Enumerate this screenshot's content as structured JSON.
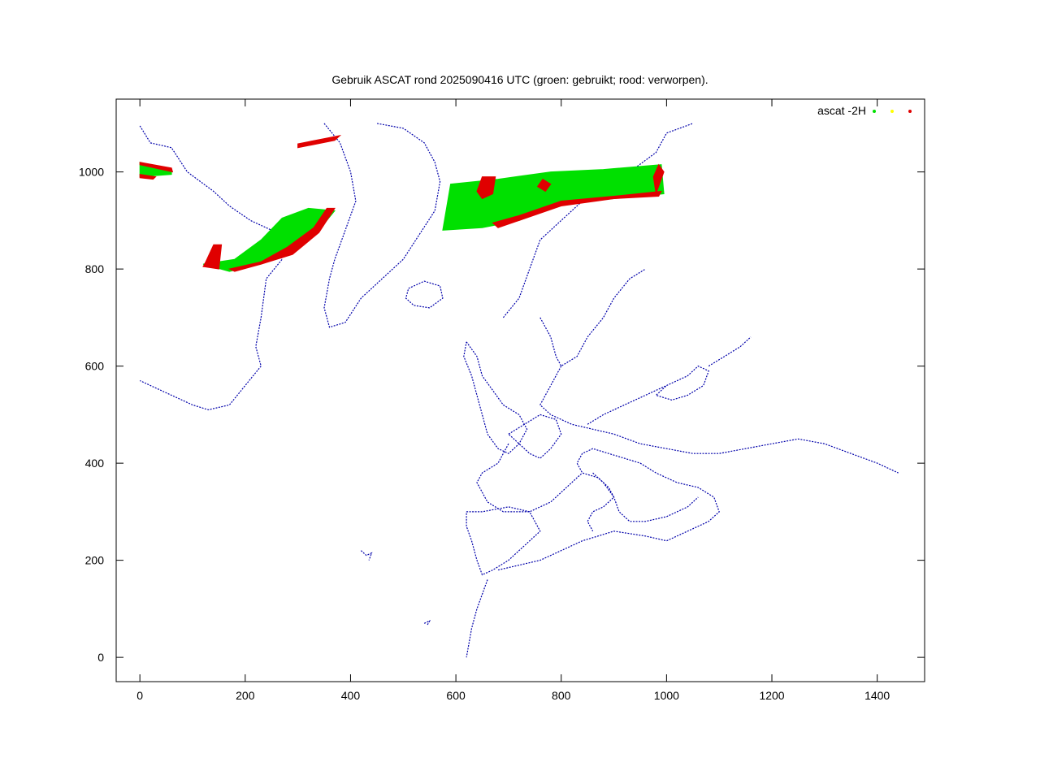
{
  "chart_data": {
    "type": "scatter",
    "title": "Gebruik ASCAT rond 2025090416 UTC (groen: gebruikt; rood: verworpen).",
    "xlabel": "",
    "ylabel": "",
    "xlim": [
      -45,
      1490
    ],
    "ylim": [
      -50,
      1150
    ],
    "x_ticks": [
      0,
      200,
      400,
      600,
      800,
      1000,
      1200,
      1400
    ],
    "y_ticks": [
      0,
      200,
      400,
      600,
      800,
      1000
    ],
    "x_tick_labels": [
      "0",
      "200",
      "400",
      "600",
      "800",
      "1000",
      "1200",
      "1400"
    ],
    "y_tick_labels": [
      "0",
      "200",
      "400",
      "600",
      "800",
      "1000"
    ],
    "grid": false,
    "legend_position": "top-right",
    "legend": {
      "label": "ascat -2H",
      "marker_colors": [
        "#00e000",
        "#ffff00",
        "#e00000"
      ]
    },
    "colors": {
      "coastline": "#0000aa",
      "used": "#00e000",
      "unknown": "#ffff00",
      "rejected": "#e00000"
    },
    "series": [
      {
        "color": "#00e000",
        "swaths": [
          {
            "polygon": [
              [
                0,
                1020
              ],
              [
                60,
                1005
              ],
              [
                60,
                995
              ],
              [
                0,
                990
              ]
            ]
          },
          {
            "polygon": [
              [
                120,
                810
              ],
              [
                170,
                795
              ],
              [
                230,
                810
              ],
              [
                280,
                830
              ],
              [
                340,
                880
              ],
              [
                370,
                920
              ],
              [
                320,
                925
              ],
              [
                270,
                905
              ],
              [
                230,
                860
              ],
              [
                180,
                820
              ]
            ]
          },
          {
            "polygon": [
              [
                575,
                880
              ],
              [
                590,
                975
              ],
              [
                680,
                985
              ],
              [
                780,
                1000
              ],
              [
                880,
                1005
              ],
              [
                990,
                1015
              ],
              [
                995,
                955
              ],
              [
                900,
                945
              ],
              [
                800,
                935
              ],
              [
                720,
                900
              ],
              [
                650,
                885
              ]
            ]
          }
        ]
      },
      {
        "color": "#e00000",
        "swaths": [
          {
            "polygon": [
              [
                0,
                1020
              ],
              [
                60,
                1008
              ],
              [
                62,
                1000
              ],
              [
                0,
                1015
              ]
            ]
          },
          {
            "polygon": [
              [
                0,
                995
              ],
              [
                30,
                990
              ],
              [
                25,
                985
              ],
              [
                0,
                988
              ]
            ]
          },
          {
            "polygon": [
              [
                300,
                1050
              ],
              [
                370,
                1065
              ],
              [
                380,
                1075
              ],
              [
                300,
                1058
              ]
            ]
          },
          {
            "polygon": [
              [
                120,
                805
              ],
              [
                150,
                800
              ],
              [
                155,
                850
              ],
              [
                140,
                850
              ],
              [
                125,
                815
              ]
            ]
          },
          {
            "polygon": [
              [
                170,
                800
              ],
              [
                230,
                815
              ],
              [
                280,
                845
              ],
              [
                330,
                885
              ],
              [
                355,
                925
              ],
              [
                370,
                925
              ],
              [
                340,
                875
              ],
              [
                290,
                830
              ],
              [
                230,
                810
              ],
              [
                180,
                795
              ]
            ]
          },
          {
            "polygon": [
              [
                650,
                990
              ],
              [
                675,
                990
              ],
              [
                670,
                955
              ],
              [
                650,
                945
              ],
              [
                640,
                960
              ]
            ]
          },
          {
            "polygon": [
              [
                770,
                960
              ],
              [
                780,
                975
              ],
              [
                765,
                985
              ],
              [
                755,
                970
              ]
            ]
          },
          {
            "polygon": [
              [
                680,
                885
              ],
              [
                720,
                900
              ],
              [
                800,
                930
              ],
              [
                900,
                945
              ],
              [
                985,
                950
              ],
              [
                990,
                960
              ],
              [
                900,
                950
              ],
              [
                800,
                940
              ],
              [
                720,
                910
              ],
              [
                670,
                895
              ]
            ]
          },
          {
            "polygon": [
              [
                980,
                955
              ],
              [
                995,
                1000
              ],
              [
                985,
                1015
              ],
              [
                975,
                990
              ]
            ]
          }
        ]
      }
    ],
    "coastlines": [
      [
        [
          0,
          1095
        ],
        [
          20,
          1060
        ],
        [
          60,
          1050
        ],
        [
          90,
          1000
        ],
        [
          140,
          960
        ],
        [
          170,
          930
        ],
        [
          210,
          900
        ],
        [
          250,
          880
        ],
        [
          270,
          820
        ],
        [
          240,
          780
        ],
        [
          230,
          700
        ],
        [
          220,
          640
        ],
        [
          230,
          600
        ],
        [
          200,
          560
        ],
        [
          170,
          520
        ],
        [
          130,
          510
        ],
        [
          100,
          520
        ],
        [
          60,
          540
        ],
        [
          20,
          560
        ],
        [
          0,
          570
        ]
      ],
      [
        [
          350,
          1100
        ],
        [
          380,
          1060
        ],
        [
          400,
          1000
        ],
        [
          410,
          940
        ],
        [
          390,
          880
        ],
        [
          370,
          820
        ],
        [
          360,
          780
        ],
        [
          350,
          720
        ],
        [
          360,
          680
        ],
        [
          390,
          690
        ],
        [
          420,
          740
        ],
        [
          460,
          780
        ],
        [
          500,
          820
        ],
        [
          530,
          870
        ],
        [
          560,
          920
        ],
        [
          570,
          980
        ],
        [
          560,
          1020
        ],
        [
          540,
          1060
        ],
        [
          500,
          1090
        ],
        [
          450,
          1100
        ]
      ],
      [
        [
          510,
          760
        ],
        [
          540,
          775
        ],
        [
          570,
          765
        ],
        [
          575,
          740
        ],
        [
          550,
          720
        ],
        [
          520,
          725
        ],
        [
          505,
          740
        ],
        [
          510,
          760
        ]
      ],
      [
        [
          620,
          650
        ],
        [
          640,
          620
        ],
        [
          650,
          580
        ],
        [
          670,
          550
        ],
        [
          690,
          520
        ],
        [
          720,
          500
        ],
        [
          735,
          470
        ],
        [
          720,
          440
        ],
        [
          700,
          420
        ],
        [
          680,
          430
        ],
        [
          660,
          460
        ],
        [
          650,
          500
        ],
        [
          640,
          540
        ],
        [
          630,
          580
        ],
        [
          615,
          620
        ],
        [
          620,
          650
        ]
      ],
      [
        [
          700,
          460
        ],
        [
          730,
          480
        ],
        [
          760,
          500
        ],
        [
          790,
          490
        ],
        [
          800,
          460
        ],
        [
          780,
          430
        ],
        [
          760,
          410
        ],
        [
          740,
          420
        ],
        [
          720,
          440
        ],
        [
          700,
          460
        ]
      ],
      [
        [
          690,
          700
        ],
        [
          720,
          740
        ],
        [
          740,
          800
        ],
        [
          760,
          860
        ],
        [
          800,
          900
        ],
        [
          840,
          940
        ],
        [
          880,
          980
        ],
        [
          930,
          1000
        ],
        [
          980,
          1040
        ],
        [
          1000,
          1080
        ],
        [
          1050,
          1100
        ]
      ],
      [
        [
          760,
          700
        ],
        [
          780,
          660
        ],
        [
          790,
          620
        ],
        [
          800,
          600
        ],
        [
          830,
          620
        ],
        [
          850,
          660
        ],
        [
          880,
          700
        ],
        [
          900,
          740
        ],
        [
          930,
          780
        ],
        [
          960,
          800
        ]
      ],
      [
        [
          800,
          600
        ],
        [
          780,
          560
        ],
        [
          760,
          520
        ],
        [
          780,
          500
        ],
        [
          820,
          480
        ],
        [
          860,
          470
        ],
        [
          900,
          460
        ],
        [
          950,
          440
        ],
        [
          1000,
          430
        ],
        [
          1050,
          420
        ],
        [
          1100,
          420
        ],
        [
          1150,
          430
        ],
        [
          1200,
          440
        ],
        [
          1250,
          450
        ],
        [
          1300,
          440
        ],
        [
          1350,
          420
        ],
        [
          1400,
          400
        ],
        [
          1440,
          380
        ]
      ],
      [
        [
          700,
          440
        ],
        [
          680,
          400
        ],
        [
          650,
          380
        ],
        [
          640,
          360
        ],
        [
          660,
          320
        ],
        [
          690,
          300
        ],
        [
          740,
          300
        ],
        [
          780,
          320
        ],
        [
          800,
          340
        ],
        [
          820,
          360
        ],
        [
          840,
          380
        ]
      ],
      [
        [
          620,
          300
        ],
        [
          650,
          300
        ],
        [
          700,
          310
        ],
        [
          740,
          300
        ],
        [
          760,
          260
        ],
        [
          730,
          230
        ],
        [
          700,
          200
        ],
        [
          670,
          180
        ],
        [
          650,
          170
        ],
        [
          640,
          200
        ],
        [
          630,
          240
        ],
        [
          620,
          270
        ],
        [
          620,
          300
        ]
      ],
      [
        [
          660,
          160
        ],
        [
          650,
          130
        ],
        [
          640,
          100
        ],
        [
          630,
          60
        ],
        [
          625,
          30
        ],
        [
          620,
          0
        ]
      ],
      [
        [
          680,
          180
        ],
        [
          720,
          190
        ],
        [
          760,
          200
        ],
        [
          800,
          220
        ],
        [
          840,
          240
        ],
        [
          870,
          250
        ],
        [
          900,
          260
        ],
        [
          960,
          250
        ],
        [
          1000,
          240
        ],
        [
          1040,
          260
        ],
        [
          1080,
          280
        ],
        [
          1100,
          300
        ],
        [
          1090,
          330
        ],
        [
          1060,
          350
        ],
        [
          1020,
          360
        ],
        [
          980,
          380
        ],
        [
          950,
          400
        ],
        [
          920,
          410
        ],
        [
          890,
          420
        ],
        [
          860,
          430
        ],
        [
          840,
          420
        ],
        [
          830,
          400
        ],
        [
          840,
          380
        ],
        [
          870,
          370
        ],
        [
          890,
          350
        ],
        [
          900,
          330
        ],
        [
          880,
          310
        ],
        [
          860,
          300
        ],
        [
          850,
          280
        ],
        [
          860,
          260
        ]
      ],
      [
        [
          860,
          380
        ],
        [
          880,
          360
        ],
        [
          900,
          330
        ],
        [
          910,
          300
        ],
        [
          930,
          280
        ],
        [
          960,
          280
        ],
        [
          1000,
          290
        ],
        [
          1040,
          310
        ],
        [
          1060,
          330
        ]
      ],
      [
        [
          1000,
          560
        ],
        [
          1040,
          580
        ],
        [
          1060,
          600
        ],
        [
          1080,
          590
        ],
        [
          1070,
          560
        ],
        [
          1040,
          540
        ],
        [
          1010,
          530
        ],
        [
          980,
          540
        ],
        [
          1000,
          560
        ]
      ],
      [
        [
          850,
          480
        ],
        [
          880,
          500
        ],
        [
          920,
          520
        ],
        [
          960,
          540
        ],
        [
          1000,
          560
        ]
      ],
      [
        [
          1080,
          600
        ],
        [
          1110,
          620
        ],
        [
          1140,
          640
        ],
        [
          1160,
          660
        ]
      ],
      [
        [
          420,
          220
        ],
        [
          430,
          210
        ],
        [
          440,
          215
        ],
        [
          435,
          200
        ]
      ],
      [
        [
          540,
          70
        ],
        [
          550,
          75
        ],
        [
          545,
          65
        ]
      ]
    ]
  }
}
